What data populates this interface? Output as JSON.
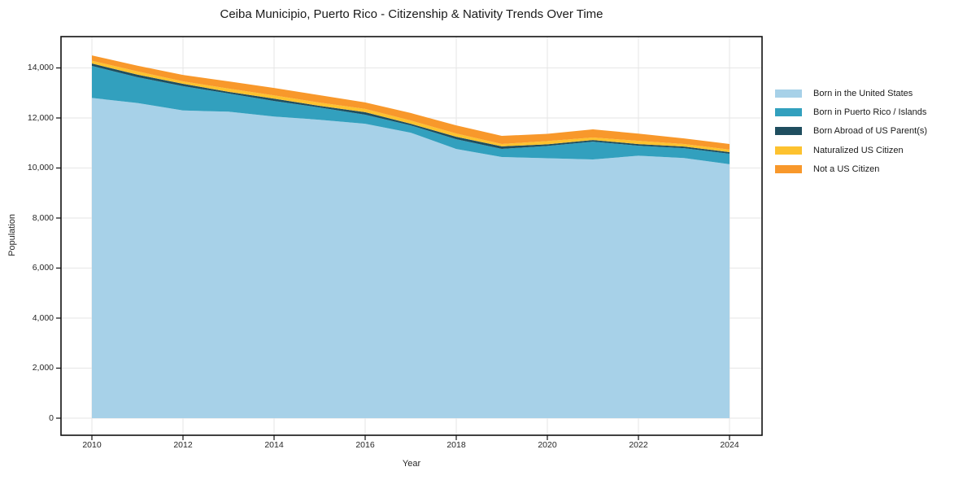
{
  "chart_data": {
    "type": "area",
    "stacked": true,
    "title": "Ceiba Municipio, Puerto Rico - Citizenship & Nativity Trends Over Time",
    "xlabel": "Year",
    "ylabel": "Population",
    "x": [
      2010,
      2011,
      2012,
      2013,
      2014,
      2015,
      2016,
      2017,
      2018,
      2019,
      2020,
      2021,
      2022,
      2023,
      2024
    ],
    "xticks": [
      2010,
      2012,
      2014,
      2016,
      2018,
      2020,
      2022,
      2024
    ],
    "yticks": [
      0,
      2000,
      4000,
      6000,
      8000,
      10000,
      12000,
      14000
    ],
    "ylim": [
      -700,
      15250
    ],
    "grid": true,
    "legend_position": "right-outside",
    "series": [
      {
        "name": "Born in the United States",
        "color": "#a7d1e8",
        "values": [
          12800,
          12600,
          12300,
          12250,
          12060,
          11930,
          11770,
          11410,
          10760,
          10440,
          10390,
          10340,
          10490,
          10400,
          10150
        ]
      },
      {
        "name": "Born in Puerto Rico / Islands",
        "color": "#32a0be",
        "values": [
          1280,
          1030,
          970,
          730,
          620,
          490,
          360,
          295,
          390,
          325,
          490,
          715,
          400,
          395,
          420
        ]
      },
      {
        "name": "Born Abroad of US Parent(s)",
        "color": "#1f4e5f",
        "values": [
          100,
          100,
          95,
          65,
          95,
          65,
          100,
          65,
          100,
          100,
          65,
          65,
          65,
          65,
          65
        ]
      },
      {
        "name": "Naturalized US Citizen",
        "color": "#fdc22f",
        "values": [
          110,
          130,
          100,
          130,
          130,
          130,
          130,
          130,
          130,
          95,
          130,
          100,
          130,
          100,
          100
        ]
      },
      {
        "name": "Not a US Citizen",
        "color": "#f8982b",
        "values": [
          210,
          230,
          255,
          290,
          295,
          295,
          260,
          300,
          325,
          325,
          290,
          325,
          290,
          225,
          225
        ]
      }
    ],
    "style": {
      "grid_color": "#e6e6e6",
      "spine_color": "#111111",
      "tick_color": "#111111",
      "text_color": "#262626",
      "background": "#ffffff"
    }
  }
}
